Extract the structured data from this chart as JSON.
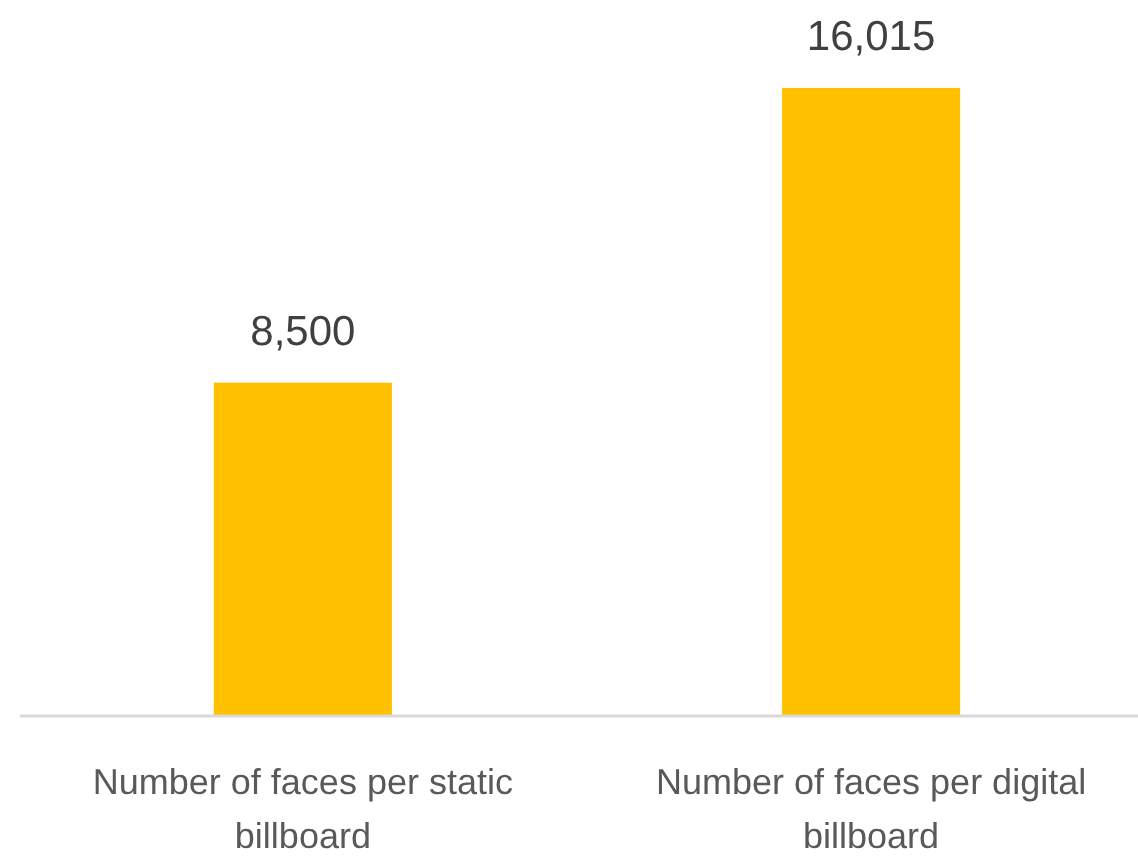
{
  "chart_data": {
    "type": "bar",
    "categories": [
      "Number of faces per static billboard",
      "Number of faces per digital billboard"
    ],
    "values": [
      8500,
      16015
    ],
    "value_labels": [
      "8,500",
      "16,015"
    ],
    "color": "#ffc000",
    "tick_labels": "x"
  }
}
